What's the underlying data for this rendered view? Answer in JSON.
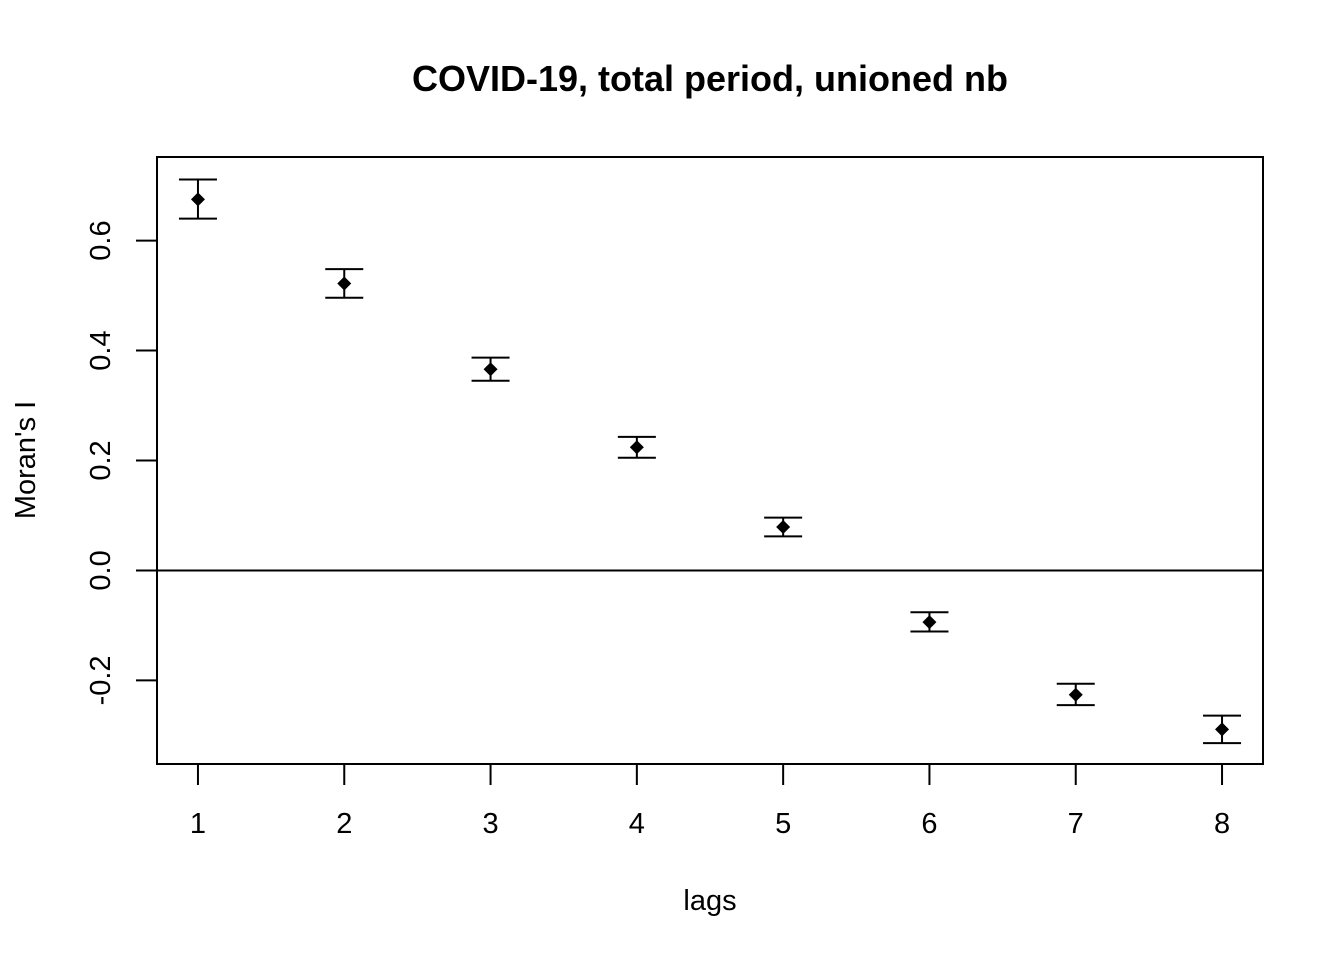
{
  "chart_data": {
    "type": "scatter",
    "title": "COVID-19, total period, unioned nb",
    "xlabel": "lags",
    "ylabel": "Moran's  I",
    "x": [
      1,
      2,
      3,
      4,
      5,
      6,
      7,
      8
    ],
    "y": [
      0.675,
      0.522,
      0.366,
      0.224,
      0.079,
      -0.094,
      -0.226,
      -0.289
    ],
    "lower": [
      0.64,
      0.496,
      0.345,
      0.205,
      0.062,
      -0.111,
      -0.245,
      -0.314
    ],
    "upper": [
      0.711,
      0.548,
      0.387,
      0.243,
      0.096,
      -0.076,
      -0.206,
      -0.264
    ],
    "xlim": [
      0.72,
      8.28
    ],
    "ylim": [
      -0.352,
      0.752
    ],
    "x_ticks": [
      "1",
      "2",
      "3",
      "4",
      "5",
      "6",
      "7",
      "8"
    ],
    "y_ticks": [
      "-0.2",
      "0.0",
      "0.2",
      "0.4",
      "0.6"
    ],
    "reference_line": 0,
    "grid": false,
    "legend": "none",
    "colors": {
      "marks": "#000000",
      "background": "#ffffff"
    }
  }
}
